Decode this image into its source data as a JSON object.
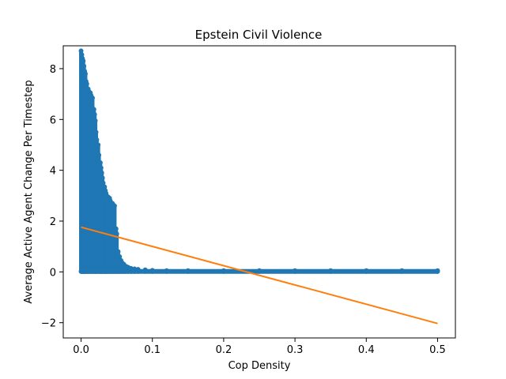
{
  "chart_data": {
    "type": "scatter",
    "title": "Epstein Civil Violence",
    "xlabel": "Cop Density",
    "ylabel": "Average Active Agent Change Per Timestep",
    "xlim": [
      -0.025,
      0.525
    ],
    "ylim": [
      -2.6,
      8.9
    ],
    "x_ticks": [
      0.0,
      0.1,
      0.2,
      0.3,
      0.4,
      0.5
    ],
    "x_tick_labels": [
      "0.0",
      "0.1",
      "0.2",
      "0.3",
      "0.4",
      "0.5"
    ],
    "y_ticks": [
      -2,
      0,
      2,
      4,
      6,
      8
    ],
    "y_tick_labels": [
      "−2",
      "0",
      "2",
      "4",
      "6",
      "8"
    ],
    "grid": false,
    "legend": "none",
    "series": [
      {
        "kind": "scatter",
        "color": "#1f77b4",
        "points": [
          [
            0.0,
            8.7
          ],
          [
            0.001,
            8.55
          ],
          [
            0.002,
            8.4
          ],
          [
            0.003,
            8.3
          ],
          [
            0.004,
            8.1
          ],
          [
            0.005,
            7.9
          ],
          [
            0.006,
            7.8
          ],
          [
            0.007,
            7.5
          ],
          [
            0.008,
            7.4
          ],
          [
            0.01,
            7.2
          ],
          [
            0.011,
            7.1
          ],
          [
            0.013,
            7.05
          ],
          [
            0.014,
            6.95
          ],
          [
            0.016,
            6.85
          ],
          [
            0.018,
            6.4
          ],
          [
            0.019,
            6.2
          ],
          [
            0.02,
            5.95
          ],
          [
            0.021,
            5.5
          ],
          [
            0.022,
            5.2
          ],
          [
            0.024,
            5.0
          ],
          [
            0.025,
            4.6
          ],
          [
            0.027,
            4.3
          ],
          [
            0.028,
            4.1
          ],
          [
            0.029,
            3.9
          ],
          [
            0.03,
            3.7
          ],
          [
            0.031,
            3.5
          ],
          [
            0.033,
            3.35
          ],
          [
            0.034,
            3.2
          ],
          [
            0.035,
            3.1
          ],
          [
            0.036,
            3.0
          ],
          [
            0.038,
            2.95
          ],
          [
            0.04,
            2.9
          ],
          [
            0.041,
            2.8
          ],
          [
            0.042,
            2.7
          ],
          [
            0.044,
            2.7
          ],
          [
            0.045,
            2.65
          ],
          [
            0.047,
            2.6
          ],
          [
            0.049,
            1.7
          ],
          [
            0.05,
            1.5
          ],
          [
            0.052,
            0.8
          ],
          [
            0.054,
            0.6
          ],
          [
            0.056,
            0.45
          ],
          [
            0.058,
            0.35
          ],
          [
            0.06,
            0.3
          ],
          [
            0.063,
            0.22
          ],
          [
            0.066,
            0.18
          ],
          [
            0.07,
            0.14
          ],
          [
            0.075,
            0.12
          ],
          [
            0.08,
            0.1
          ],
          [
            0.09,
            0.08
          ],
          [
            0.1,
            0.06
          ],
          [
            0.12,
            0.05
          ],
          [
            0.15,
            0.05
          ],
          [
            0.2,
            0.05
          ],
          [
            0.25,
            0.05
          ],
          [
            0.3,
            0.05
          ],
          [
            0.35,
            0.05
          ],
          [
            0.4,
            0.05
          ],
          [
            0.45,
            0.05
          ],
          [
            0.5,
            0.05
          ]
        ]
      },
      {
        "kind": "line",
        "color": "#ff7f0e",
        "points": [
          [
            0.0,
            1.76
          ],
          [
            0.5,
            -2.03
          ]
        ]
      }
    ]
  }
}
